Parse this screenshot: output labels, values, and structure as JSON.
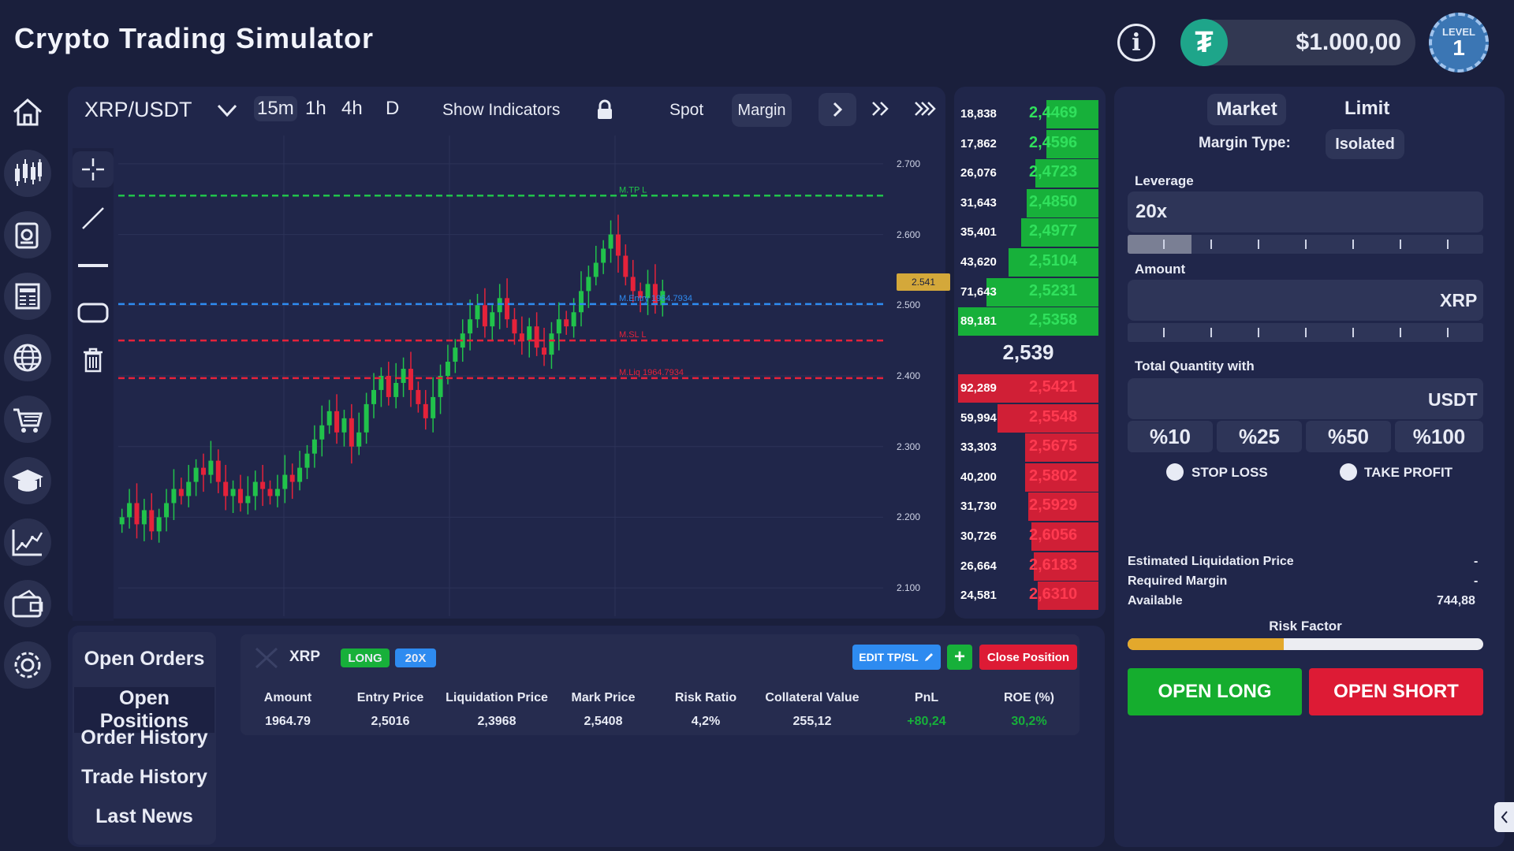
{
  "app": {
    "title": "Crypto Trading Simulator",
    "balance": "$1.000,00",
    "level_label": "LEVEL",
    "level_value": "1",
    "tether_glyph": "₮"
  },
  "sidebar": {
    "items": [
      "home-icon",
      "candlestick-icon",
      "portfolio-icon",
      "news-icon",
      "globe-icon",
      "cart-icon",
      "graduation-cap-icon",
      "growth-chart-icon",
      "wallet-icon",
      "settings-icon"
    ]
  },
  "toolbar": {
    "pair": "XRP/USDT",
    "timeframes": [
      "15m",
      "1h",
      "4h",
      "D"
    ],
    "active_timeframe": "15m",
    "show_indicators": "Show Indicators",
    "spot": "Spot",
    "margin": "Margin"
  },
  "chart_data": {
    "type": "candlestick",
    "symbol": "XRP/USDT",
    "ylim": [
      2.06,
      2.74
    ],
    "y_ticks": [
      "2.700",
      "2.600",
      "2.500",
      "2.400",
      "2.300",
      "2.200",
      "2.100"
    ],
    "current_price_label": "2.541",
    "lines": [
      {
        "label": "M.TP L",
        "price": 2.655,
        "color": "#21c24b"
      },
      {
        "label": "M.Entry 1964.7934",
        "price": 2.5016,
        "color": "#2e8bf0"
      },
      {
        "label": "M.SL L",
        "price": 2.45,
        "color": "#e5223a"
      },
      {
        "label": "M.Liq 1964.7934",
        "price": 2.3968,
        "color": "#e5223a"
      }
    ],
    "closes": [
      2.2,
      2.22,
      2.19,
      2.21,
      2.18,
      2.2,
      2.22,
      2.24,
      2.23,
      2.25,
      2.27,
      2.26,
      2.28,
      2.25,
      2.23,
      2.24,
      2.22,
      2.23,
      2.25,
      2.24,
      2.23,
      2.24,
      2.26,
      2.25,
      2.27,
      2.29,
      2.31,
      2.33,
      2.35,
      2.32,
      2.34,
      2.3,
      2.32,
      2.36,
      2.38,
      2.4,
      2.37,
      2.39,
      2.41,
      2.38,
      2.36,
      2.34,
      2.37,
      2.4,
      2.42,
      2.44,
      2.46,
      2.48,
      2.5,
      2.47,
      2.49,
      2.51,
      2.48,
      2.46,
      2.45,
      2.47,
      2.44,
      2.43,
      2.46,
      2.48,
      2.47,
      2.49,
      2.52,
      2.54,
      2.56,
      2.58,
      2.6,
      2.57,
      2.54,
      2.52,
      2.51,
      2.53,
      2.5,
      2.52
    ]
  },
  "orderbook": {
    "asks": [
      {
        "qty": "18,838",
        "price": "2,4469",
        "depth": 0.37
      },
      {
        "qty": "17,862",
        "price": "2,4596",
        "depth": 0.37
      },
      {
        "qty": "26,076",
        "price": "2,4723",
        "depth": 0.45
      },
      {
        "qty": "31,643",
        "price": "2,4850",
        "depth": 0.51
      },
      {
        "qty": "35,401",
        "price": "2,4977",
        "depth": 0.55
      },
      {
        "qty": "43,620",
        "price": "2,5104",
        "depth": 0.64
      },
      {
        "qty": "71,643",
        "price": "2,5231",
        "depth": 0.8
      },
      {
        "qty": "89,181",
        "price": "2,5358",
        "depth": 1.0
      }
    ],
    "mid_price": "2,539",
    "bids": [
      {
        "qty": "92,289",
        "price": "2,5421",
        "depth": 1.0
      },
      {
        "qty": "59,994",
        "price": "2,5548",
        "depth": 0.72
      },
      {
        "qty": "33,303",
        "price": "2,5675",
        "depth": 0.52
      },
      {
        "qty": "40,200",
        "price": "2,5802",
        "depth": 0.52
      },
      {
        "qty": "31,730",
        "price": "2,5929",
        "depth": 0.5
      },
      {
        "qty": "30,726",
        "price": "2,6056",
        "depth": 0.48
      },
      {
        "qty": "26,664",
        "price": "2,6183",
        "depth": 0.46
      },
      {
        "qty": "24,581",
        "price": "2,6310",
        "depth": 0.43
      }
    ]
  },
  "order_form": {
    "tabs": [
      "Market",
      "Limit"
    ],
    "margin_type_label": "Margin Type:",
    "margin_type_value": "Isolated",
    "leverage_label": "Leverage",
    "leverage_value": "20x",
    "leverage_fill": 0.18,
    "amount_label": "Amount",
    "amount_unit": "XRP",
    "total_label": "Total Quantity with",
    "total_unit": "USDT",
    "percents": [
      "%10",
      "%25",
      "%50",
      "%100"
    ],
    "stop_loss": "STOP LOSS",
    "take_profit": "TAKE PROFIT",
    "est_liq_label": "Estimated Liquidation Price",
    "est_liq_value": "-",
    "req_margin_label": "Required Margin",
    "req_margin_value": "-",
    "available_label": "Available",
    "available_value": "744,88",
    "risk_label": "Risk Factor",
    "risk_fill": 0.44,
    "open_long": "OPEN LONG",
    "open_short": "OPEN SHORT"
  },
  "bottom_tabs": [
    "Open Orders",
    "Open Positions",
    "Order History",
    "Trade History",
    "Last News"
  ],
  "position": {
    "symbol": "XRP",
    "side": "LONG",
    "leverage": "20X",
    "edit_label": "EDIT TP/SL",
    "add_label": "+",
    "close_label": "Close Position",
    "columns": [
      "Amount",
      "Entry Price",
      "Liquidation Price",
      "Mark Price",
      "Risk Ratio",
      "Collateral Value",
      "PnL",
      "ROE (%)"
    ],
    "values": [
      "1964.79",
      "2,5016",
      "2,3968",
      "2,5408",
      "4,2%",
      "255,12",
      "+80,24",
      "30,2%"
    ]
  },
  "colors": {
    "bg": "#1a1f3c",
    "panel": "#20264a",
    "green": "#17b03a",
    "red": "#d01f36",
    "blue": "#2e8bf0"
  }
}
